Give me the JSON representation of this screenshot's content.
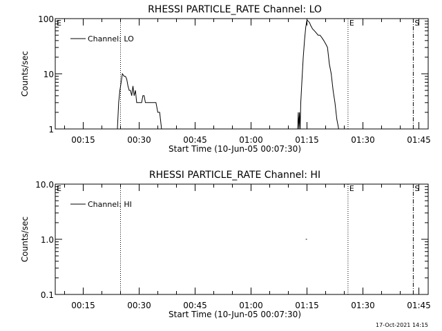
{
  "footer": {
    "timestamp": "17-Oct-2021 14:15"
  },
  "chart_data": [
    {
      "type": "line",
      "title": "RHESSI PARTICLE_RATE Channel: LO",
      "xlabel": "Start Time (10-Jun-05 00:07:30)",
      "ylabel": "Counts/sec",
      "y_scale": "log",
      "ylim": [
        1,
        100
      ],
      "y_ticks": [
        1,
        10,
        100
      ],
      "y_tick_labels": [
        "1",
        "10",
        "100"
      ],
      "xlim": [
        "00:07:30",
        "01:47:30"
      ],
      "x_ticks": [
        "00:15",
        "00:30",
        "00:45",
        "01:00",
        "01:15",
        "01:30",
        "01:45"
      ],
      "legend": {
        "position": "top-left",
        "entries": [
          "Channel: LO"
        ]
      },
      "markers": [
        {
          "time": "00:25:00",
          "style": "dotted",
          "label": ""
        },
        {
          "time": "01:26:00",
          "style": "dotted",
          "label": "E"
        },
        {
          "time": "01:43:30",
          "style": "dash-dot",
          "label": "S"
        }
      ],
      "edge_label": "E",
      "series": [
        {
          "name": "Channel: LO",
          "x": [
            "00:24:10",
            "00:24:30",
            "00:24:50",
            "00:25:10",
            "00:25:30",
            "00:26:00",
            "00:26:20",
            "00:26:40",
            "00:27:00",
            "00:27:20",
            "00:27:40",
            "00:28:00",
            "00:28:20",
            "00:28:40",
            "00:29:00",
            "00:29:20",
            "00:29:40",
            "00:30:00",
            "00:30:20",
            "00:30:40",
            "00:31:00",
            "00:31:20",
            "00:31:40",
            "00:32:00",
            "00:32:30",
            "00:33:00",
            "00:33:30",
            "00:34:00",
            "00:34:30",
            "00:35:00",
            "00:35:30",
            "00:36:00",
            "00:36:30",
            "01:12:30",
            "01:12:40",
            "01:12:50",
            "01:13:00",
            "01:13:10",
            "01:13:20",
            "01:13:40",
            "01:14:00",
            "01:14:20",
            "01:14:40",
            "01:15:00",
            "01:15:20",
            "01:15:40",
            "01:16:00",
            "01:16:30",
            "01:17:00",
            "01:17:30",
            "01:18:00",
            "01:18:30",
            "01:19:00",
            "01:19:30",
            "01:20:00",
            "01:20:30",
            "01:21:00",
            "01:21:30",
            "01:22:00",
            "01:22:30",
            "01:23:00",
            "01:23:30"
          ],
          "y": [
            1,
            3,
            5,
            7,
            10,
            9,
            9,
            8,
            6,
            5,
            5,
            4,
            6,
            4,
            5,
            3,
            3,
            3,
            3,
            3,
            4,
            4,
            3,
            3,
            3,
            3,
            3,
            3,
            3,
            2,
            2,
            1,
            1,
            1,
            2,
            1,
            2,
            1,
            3,
            8,
            20,
            40,
            70,
            95,
            90,
            85,
            75,
            65,
            60,
            55,
            50,
            50,
            45,
            40,
            35,
            30,
            15,
            10,
            5,
            3,
            1.5,
            1
          ]
        }
      ]
    },
    {
      "type": "line",
      "title": "RHESSI PARTICLE_RATE Channel: HI",
      "xlabel": "Start Time (10-Jun-05 00:07:30)",
      "ylabel": "Counts/sec",
      "y_scale": "log",
      "ylim": [
        0.1,
        10
      ],
      "y_ticks": [
        0.1,
        1,
        10
      ],
      "y_tick_labels": [
        "0.1",
        "1.0",
        "10.0"
      ],
      "xlim": [
        "00:07:30",
        "01:47:30"
      ],
      "x_ticks": [
        "00:15",
        "00:30",
        "00:45",
        "01:00",
        "01:15",
        "01:30",
        "01:45"
      ],
      "legend": {
        "position": "top-left",
        "entries": [
          "Channel: HI"
        ]
      },
      "markers": [
        {
          "time": "00:25:00",
          "style": "dotted",
          "label": ""
        },
        {
          "time": "01:26:00",
          "style": "dotted",
          "label": "E"
        },
        {
          "time": "01:43:30",
          "style": "dash-dot",
          "label": "S"
        }
      ],
      "edge_label": "E",
      "series": [
        {
          "name": "Channel: HI",
          "x": [
            "01:14:40",
            "01:15:00"
          ],
          "y": [
            1,
            1
          ]
        }
      ]
    }
  ]
}
